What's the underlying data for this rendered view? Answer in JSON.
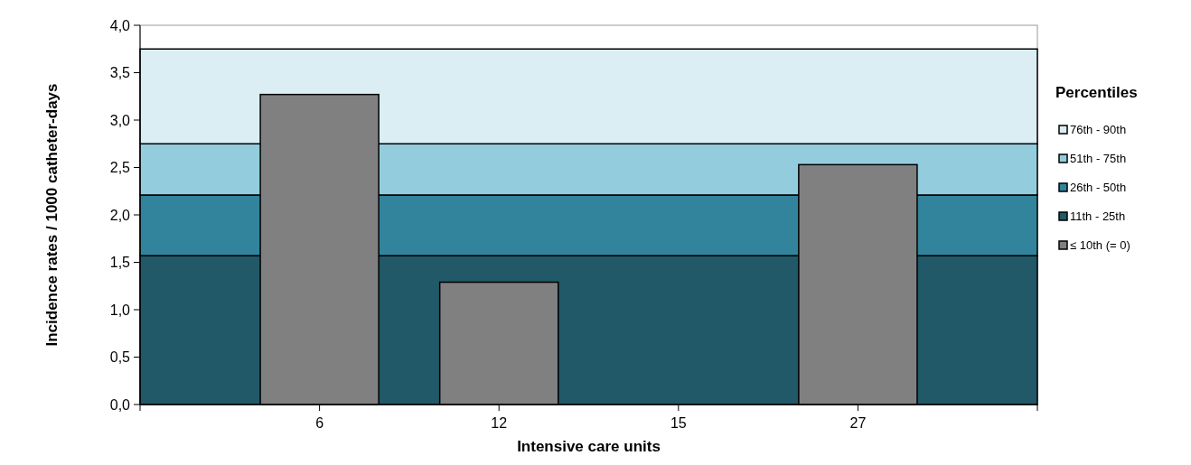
{
  "chart_data": {
    "type": "bar",
    "xlabel": "Intensive care units",
    "ylabel": "Incidence rates / 1000 catheter-days",
    "legend_title": "Percentiles",
    "categories": [
      "6",
      "12",
      "15",
      "27"
    ],
    "series": [
      {
        "name": "≤ 10th (= 0)",
        "color": "#808080",
        "values": [
          3.27,
          1.29,
          0,
          2.53
        ]
      }
    ],
    "ylim": [
      0,
      4
    ],
    "yticks": [
      {
        "value": 0,
        "label": "0,0"
      },
      {
        "value": 0.5,
        "label": "0,5"
      },
      {
        "value": 1,
        "label": "1,0"
      },
      {
        "value": 1.5,
        "label": "1,5"
      },
      {
        "value": 2,
        "label": "2,0"
      },
      {
        "value": 2.5,
        "label": "2,5"
      },
      {
        "value": 3,
        "label": "3,0"
      },
      {
        "value": 3.5,
        "label": "3,5"
      },
      {
        "value": 4,
        "label": "4,0"
      }
    ],
    "bands": [
      {
        "axis": "y",
        "from": 0,
        "to": 1.57,
        "label": "11th - 25th",
        "color": "#215968"
      },
      {
        "axis": "y",
        "from": 1.57,
        "to": 2.21,
        "label": "26th - 50th",
        "color": "#31849b"
      },
      {
        "axis": "y",
        "from": 2.21,
        "to": 2.75,
        "label": "51th - 75th",
        "color": "#93cddd"
      },
      {
        "axis": "y",
        "from": 2.75,
        "to": 3.75,
        "label": "76th - 90th",
        "color": "#daeef3"
      }
    ],
    "legend": "right",
    "grid": false
  }
}
